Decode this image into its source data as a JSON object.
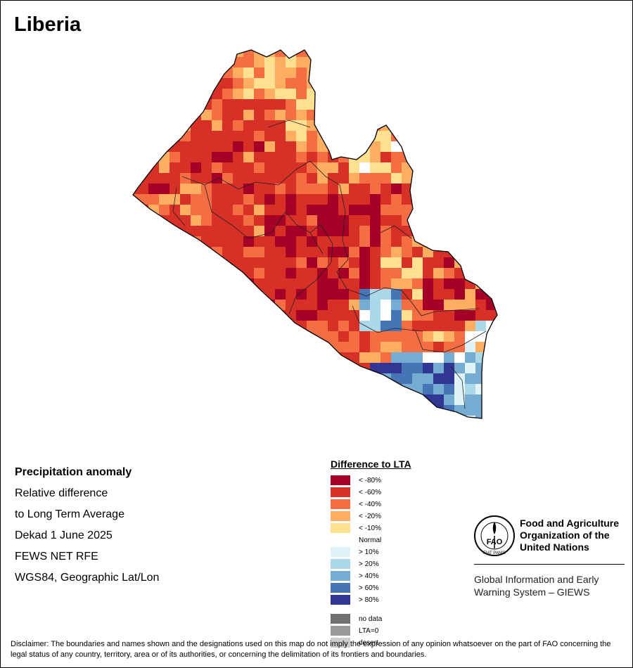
{
  "title": "Liberia",
  "info_lines": [
    "Precipitation anomaly",
    "Relative difference",
    "to Long Term Average",
    "Dekad 1 June 2025",
    "FEWS NET RFE",
    "WGS84, Geographic Lat/Lon"
  ],
  "legend": {
    "title": "Difference to LTA",
    "items": [
      {
        "label": "< -80%",
        "color": "#a50026"
      },
      {
        "label": "< -60%",
        "color": "#d73027"
      },
      {
        "label": "< -40%",
        "color": "#f46d43"
      },
      {
        "label": "< -20%",
        "color": "#fdae61"
      },
      {
        "label": "< -10%",
        "color": "#fee090"
      },
      {
        "label": "Normal",
        "color": "#ffffff"
      },
      {
        "label": "> 10%",
        "color": "#e0f3f8"
      },
      {
        "label": "> 20%",
        "color": "#abd9e9"
      },
      {
        "label": "> 40%",
        "color": "#74add1"
      },
      {
        "label": "> 60%",
        "color": "#4575b4"
      },
      {
        "label": "> 80%",
        "color": "#313695"
      },
      {
        "label": "no data",
        "color": "#707070"
      },
      {
        "label": "LTA=0",
        "color": "#999999"
      },
      {
        "label": "desert",
        "color": "#cccccc"
      }
    ]
  },
  "fao": {
    "name_lines": [
      "Food and Agriculture",
      "Organization of the",
      "United Nations"
    ],
    "logo_text": "FAO",
    "motto": "FIAT PANIS",
    "giews_lines": [
      "Global Information and Early",
      "Warning System – GIEWS"
    ]
  },
  "disclaimer": "Disclaimer: The boundaries and names shown and the designations used on this map do not imply the expression of any opinion whatsoever on the part of FAO concerning the legal status of any country, territory, area or of its authorities, or concerning the delimitation of its frontiers and boundaries."
}
